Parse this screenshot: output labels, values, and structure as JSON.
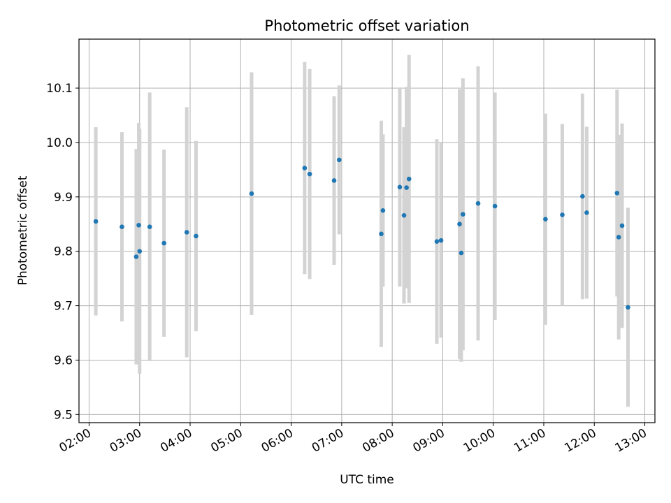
{
  "chart_data": {
    "type": "scatter",
    "title": "Photometric offset variation",
    "xlabel": "UTC time",
    "ylabel": "Photometric offset",
    "xlim": [
      "01:48",
      "13:12"
    ],
    "ylim": [
      9.485,
      10.19
    ],
    "x_ticks": [
      "02:00",
      "03:00",
      "04:00",
      "05:00",
      "06:00",
      "07:00",
      "08:00",
      "09:00",
      "10:00",
      "11:00",
      "12:00",
      "13:00"
    ],
    "y_ticks": [
      9.5,
      9.6,
      9.7,
      9.8,
      9.9,
      10.0,
      10.1
    ],
    "y_tick_labels": [
      "9.5",
      "9.6",
      "9.7",
      "9.8",
      "9.9",
      "10.0",
      "10.1"
    ],
    "grid": true,
    "marker_color": "#1f77b4",
    "errorbar_color": "#d3d3d3",
    "series": [
      {
        "x": [
          "02:08",
          "02:39",
          "02:56",
          "02:59",
          "03:00",
          "03:12",
          "03:29",
          "03:56",
          "04:07",
          "05:13",
          "06:16",
          "06:22",
          "06:51",
          "06:57",
          "07:47",
          "07:49",
          "08:09",
          "08:14",
          "08:17",
          "08:20",
          "08:53",
          "08:58",
          "09:20",
          "09:22",
          "09:24",
          "09:42",
          "10:02",
          "11:02",
          "11:22",
          "11:46",
          "11:51",
          "12:27",
          "12:29",
          "12:33",
          "12:40"
        ],
        "y": [
          9.855,
          9.845,
          9.79,
          9.848,
          9.8,
          9.845,
          9.815,
          9.835,
          9.828,
          9.906,
          9.953,
          9.942,
          9.93,
          9.968,
          9.832,
          9.875,
          9.918,
          9.866,
          9.917,
          9.933,
          9.818,
          9.82,
          9.85,
          9.797,
          9.868,
          9.888,
          9.883,
          9.859,
          9.867,
          9.901,
          9.871,
          9.907,
          9.826,
          9.847,
          9.697
        ],
        "y_err": [
          0.173,
          0.174,
          0.198,
          0.188,
          0.225,
          0.247,
          0.172,
          0.23,
          0.175,
          0.223,
          0.195,
          0.193,
          0.155,
          0.137,
          0.208,
          0.14,
          0.183,
          0.162,
          0.185,
          0.228,
          0.188,
          0.179,
          0.248,
          0.2,
          0.25,
          0.252,
          0.209,
          0.194,
          0.167,
          0.189,
          0.158,
          0.19,
          0.188,
          0.188,
          0.183
        ]
      }
    ]
  }
}
